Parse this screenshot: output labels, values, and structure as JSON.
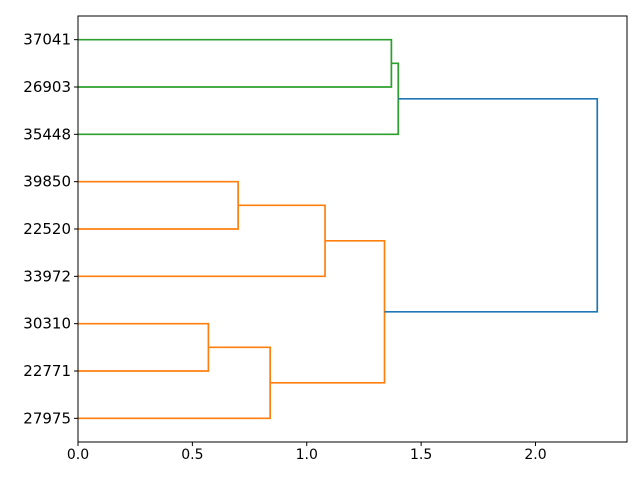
{
  "figure": {
    "background": "#ffffff",
    "spine_color": "#000000",
    "tick_color": "#000000",
    "text_color": "#000000"
  },
  "chart_data": {
    "type": "dendrogram",
    "orientation": "right",
    "title": "",
    "xlabel": "",
    "ylabel": "",
    "grid": false,
    "legend": null,
    "leaves": [
      "37041",
      "26903",
      "35448",
      "39850",
      "22520",
      "33972",
      "30310",
      "22771",
      "27975"
    ],
    "xlim": [
      0,
      2.4
    ],
    "xticks": [
      "0.0",
      "0.5",
      "1.0",
      "1.5",
      "2.0"
    ],
    "xtick_values": [
      0,
      0.5,
      1.0,
      1.5,
      2.0
    ],
    "colors": {
      "cluster_green": "#2ca02c",
      "cluster_orange": "#ff7f0e",
      "root_blue": "#1f77b4"
    },
    "line_width": 1.7,
    "merges": [
      {
        "id": "m0",
        "a": "L0",
        "b": "L1",
        "distance": 1.37,
        "color": "#2ca02c"
      },
      {
        "id": "m1",
        "a": "m0",
        "b": "L2",
        "distance": 1.4,
        "color": "#2ca02c"
      },
      {
        "id": "m2",
        "a": "L3",
        "b": "L4",
        "distance": 0.7,
        "color": "#ff7f0e"
      },
      {
        "id": "m3",
        "a": "m2",
        "b": "L5",
        "distance": 1.08,
        "color": "#ff7f0e"
      },
      {
        "id": "m4",
        "a": "L6",
        "b": "L7",
        "distance": 0.57,
        "color": "#ff7f0e"
      },
      {
        "id": "m5",
        "a": "m4",
        "b": "L8",
        "distance": 0.84,
        "color": "#ff7f0e"
      },
      {
        "id": "m6",
        "a": "m3",
        "b": "m5",
        "distance": 1.34,
        "color": "#ff7f0e"
      },
      {
        "id": "m7",
        "a": "m1",
        "b": "m6",
        "distance": 2.27,
        "color": "#1f77b4"
      }
    ]
  }
}
